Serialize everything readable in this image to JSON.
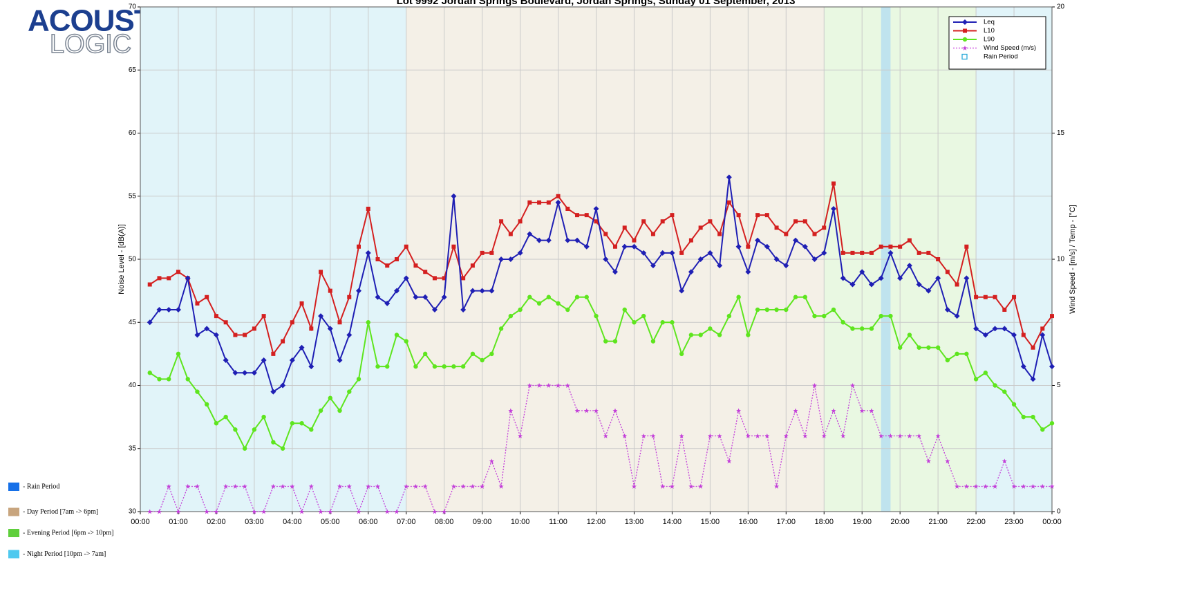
{
  "logo": [
    "ACOUSTIC",
    "LOGIC"
  ],
  "chart_data": {
    "type": "line",
    "title": "Lot 9992 Jordan Springs Boulevard, Jordan Springs, Sunday 01 September, 2013",
    "ylabel": "Noise Level - [dB(A)]",
    "y2label": "Wind Speed - [m/s] / Temp - [°C]",
    "x": [
      0.25,
      0.5,
      0.75,
      1,
      1.25,
      1.5,
      1.75,
      2,
      2.25,
      2.5,
      2.75,
      3,
      3.25,
      3.5,
      3.75,
      4,
      4.25,
      4.5,
      4.75,
      5,
      5.25,
      5.5,
      5.75,
      6,
      6.25,
      6.5,
      6.75,
      7,
      7.25,
      7.5,
      7.75,
      8,
      8.25,
      8.5,
      8.75,
      9,
      9.25,
      9.5,
      9.75,
      10,
      10.25,
      10.5,
      10.75,
      11,
      11.25,
      11.5,
      11.75,
      12,
      12.25,
      12.5,
      12.75,
      13,
      13.25,
      13.5,
      13.75,
      14,
      14.25,
      14.5,
      14.75,
      15,
      15.25,
      15.5,
      15.75,
      16,
      16.25,
      16.5,
      16.75,
      17,
      17.25,
      17.5,
      17.75,
      18,
      18.25,
      18.5,
      18.75,
      19,
      19.25,
      19.5,
      19.75,
      20,
      20.25,
      20.5,
      20.75,
      21,
      21.25,
      21.5,
      21.75,
      22,
      22.25,
      22.5,
      22.75,
      23,
      23.25,
      23.5,
      23.75,
      24
    ],
    "xlim": [
      0,
      24
    ],
    "xticks": [
      {
        "value": 0,
        "label": "00:00"
      },
      {
        "value": 1,
        "label": "01:00"
      },
      {
        "value": 2,
        "label": "02:00"
      },
      {
        "value": 3,
        "label": "03:00"
      },
      {
        "value": 4,
        "label": "04:00"
      },
      {
        "value": 5,
        "label": "05:00"
      },
      {
        "value": 6,
        "label": "06:00"
      },
      {
        "value": 7,
        "label": "07:00"
      },
      {
        "value": 8,
        "label": "08:00"
      },
      {
        "value": 9,
        "label": "09:00"
      },
      {
        "value": 10,
        "label": "10:00"
      },
      {
        "value": 11,
        "label": "11:00"
      },
      {
        "value": 12,
        "label": "12:00"
      },
      {
        "value": 13,
        "label": "13:00"
      },
      {
        "value": 14,
        "label": "14:00"
      },
      {
        "value": 15,
        "label": "15:00"
      },
      {
        "value": 16,
        "label": "16:00"
      },
      {
        "value": 17,
        "label": "17:00"
      },
      {
        "value": 18,
        "label": "18:00"
      },
      {
        "value": 19,
        "label": "19:00"
      },
      {
        "value": 20,
        "label": "20:00"
      },
      {
        "value": 21,
        "label": "21:00"
      },
      {
        "value": 22,
        "label": "22:00"
      },
      {
        "value": 23,
        "label": "23:00"
      },
      {
        "value": 24,
        "label": "00:00"
      }
    ],
    "ylim": [
      30,
      70
    ],
    "yticks": [
      30,
      35,
      40,
      45,
      50,
      55,
      60,
      65,
      70
    ],
    "y2lim": [
      0,
      20
    ],
    "y2ticks": [
      0,
      5,
      10,
      15,
      20
    ],
    "grid": true,
    "series": [
      {
        "name": "Leq",
        "color": "#1f1fb4",
        "marker": "diamond",
        "values": [
          45,
          46,
          46,
          46,
          48.5,
          44,
          44.5,
          44,
          42,
          41,
          41,
          41,
          42,
          39.5,
          40,
          42,
          43,
          41.5,
          45.5,
          44.5,
          42,
          44,
          47.5,
          50.5,
          47,
          46.5,
          47.5,
          48.5,
          47,
          47,
          46,
          47,
          55,
          46,
          47.5,
          47.5,
          47.5,
          50,
          50,
          50.5,
          52,
          51.5,
          51.5,
          54.5,
          51.5,
          51.5,
          51,
          54,
          50,
          49,
          51,
          51,
          50.5,
          49.5,
          50.5,
          50.5,
          47.5,
          49,
          50,
          50.5,
          49.5,
          56.5,
          51,
          49,
          51.5,
          51,
          50,
          49.5,
          51.5,
          51,
          50,
          50.5,
          54,
          48.5,
          48,
          49,
          48,
          48.5,
          50.5,
          48.5,
          49.5,
          48,
          47.5,
          48.5,
          46,
          45.5,
          48.5,
          44.5,
          44,
          44.5,
          44.5,
          44,
          41.5,
          40.5,
          44,
          41.5
        ]
      },
      {
        "name": "L10",
        "color": "#d42020",
        "marker": "square",
        "values": [
          48,
          48.5,
          48.5,
          49,
          48.5,
          46.5,
          47,
          45.5,
          45,
          44,
          44,
          44.5,
          45.5,
          42.5,
          43.5,
          45,
          46.5,
          44.5,
          49,
          47.5,
          45,
          47,
          51,
          54,
          50,
          49.5,
          50,
          51,
          49.5,
          49,
          48.5,
          48.5,
          51,
          48.5,
          49.5,
          50.5,
          50.5,
          53,
          52,
          53,
          54.5,
          54.5,
          54.5,
          55,
          54,
          53.5,
          53.5,
          53,
          52,
          51,
          52.5,
          51.5,
          53,
          52,
          53,
          53.5,
          50.5,
          51.5,
          52.5,
          53,
          52,
          54.5,
          53.5,
          51,
          53.5,
          53.5,
          52.5,
          52,
          53,
          53,
          52,
          52.5,
          56,
          50.5,
          50.5,
          50.5,
          50.5,
          51,
          51,
          51,
          51.5,
          50.5,
          50.5,
          50,
          49,
          48,
          51,
          47,
          47,
          47,
          46,
          47,
          44,
          43,
          44.5,
          45.5
        ]
      },
      {
        "name": "L90",
        "color": "#5ee51e",
        "marker": "circle",
        "values": [
          41,
          40.5,
          40.5,
          42.5,
          40.5,
          39.5,
          38.5,
          37,
          37.5,
          36.5,
          35,
          36.5,
          37.5,
          35.5,
          35,
          37,
          37,
          36.5,
          38,
          39,
          38,
          39.5,
          40.5,
          45,
          41.5,
          41.5,
          44,
          43.5,
          41.5,
          42.5,
          41.5,
          41.5,
          41.5,
          41.5,
          42.5,
          42,
          42.5,
          44.5,
          45.5,
          46,
          47,
          46.5,
          47,
          46.5,
          46,
          47,
          47,
          45.5,
          43.5,
          43.5,
          46,
          45,
          45.5,
          43.5,
          45,
          45,
          42.5,
          44,
          44,
          44.5,
          44,
          45.5,
          47,
          44,
          46,
          46,
          46,
          46,
          47,
          47,
          45.5,
          45.5,
          46,
          45,
          44.5,
          44.5,
          44.5,
          45.5,
          45.5,
          43,
          44,
          43,
          43,
          43,
          42,
          42.5,
          42.5,
          40.5,
          41,
          40,
          39.5,
          38.5,
          37.5,
          37.5,
          36.5,
          37
        ]
      },
      {
        "name": "Wind Speed (m/s)",
        "color": "#c33fd9",
        "marker": "star",
        "axis": "y2",
        "dashed": true,
        "values": [
          0,
          0,
          1,
          0,
          1,
          1,
          0,
          0,
          1,
          1,
          1,
          0,
          0,
          1,
          1,
          1,
          0,
          1,
          0,
          0,
          1,
          1,
          0,
          1,
          1,
          0,
          0,
          1,
          1,
          1,
          0,
          0,
          1,
          1,
          1,
          1,
          2,
          1,
          4,
          3,
          5,
          5,
          5,
          5,
          5,
          4,
          4,
          4,
          3,
          4,
          3,
          1,
          3,
          3,
          1,
          1,
          3,
          1,
          1,
          3,
          3,
          2,
          4,
          3,
          3,
          3,
          1,
          3,
          4,
          3,
          5,
          3,
          4,
          3,
          5,
          4,
          4,
          3,
          3,
          3,
          3,
          3,
          2,
          3,
          2,
          1,
          1,
          1,
          1,
          1,
          2,
          1,
          1,
          1,
          1,
          1
        ]
      }
    ],
    "legend": "upper right",
    "rain_period": {
      "name": "Rain Period",
      "color": "#bfe3ee",
      "start": 19.5,
      "end": 19.75
    },
    "bands": [
      {
        "start": 0,
        "end": 7,
        "color": "#e1f4f9"
      },
      {
        "start": 7,
        "end": 18,
        "color": "#f4f0e7"
      },
      {
        "start": 18,
        "end": 22,
        "color": "#e9f8e2"
      },
      {
        "start": 22,
        "end": 24,
        "color": "#e1f4f9"
      }
    ],
    "period_legend": [
      {
        "label": "- Rain Period",
        "color": "#1670e8"
      },
      {
        "label": "- Day Period [7am -> 6pm]",
        "color": "#c8a57e"
      },
      {
        "label": "- Evening Period [6pm -> 10pm]",
        "color": "#5fcf3c"
      },
      {
        "label": "- Night Period [10pm -> 7am]",
        "color": "#4fc9ef"
      }
    ]
  }
}
